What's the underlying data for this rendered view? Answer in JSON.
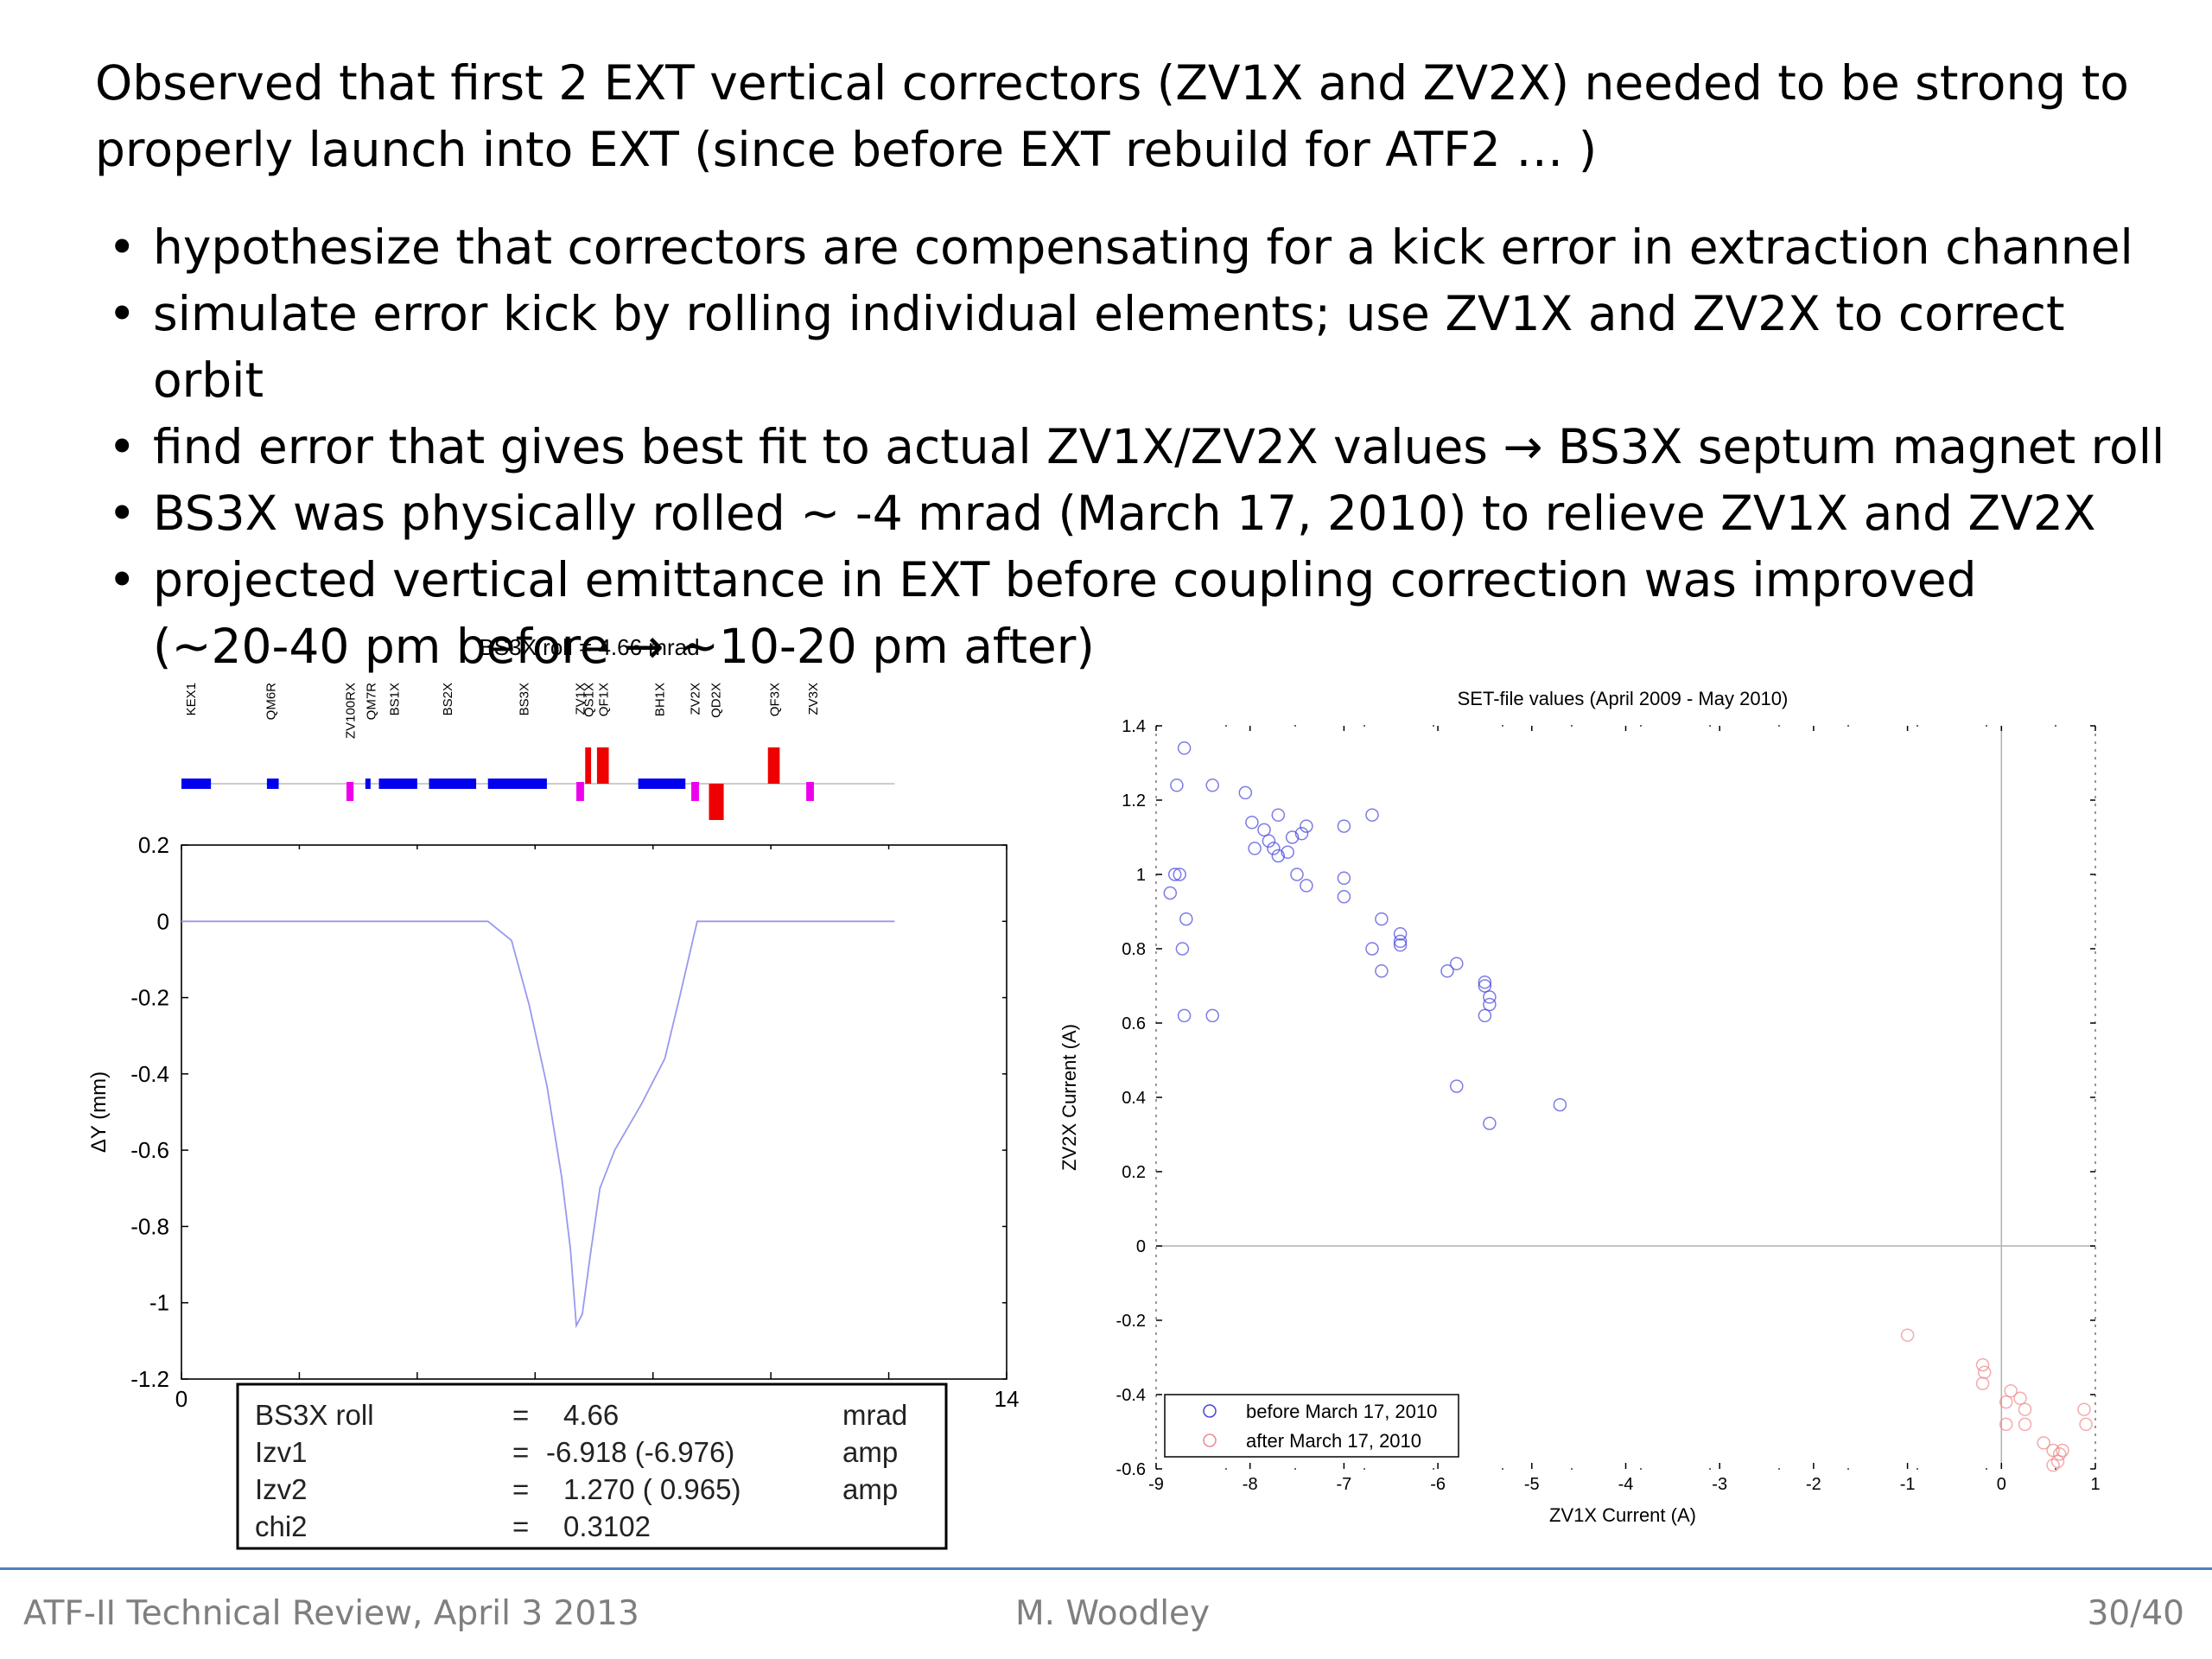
{
  "slide": {
    "intro_lines": [
      "Observed that first 2 EXT vertical correctors (ZV1X and ZV2X) needed to be strong to",
      "properly launch into EXT (since before EXT rebuild for ATF2 … )"
    ],
    "bullets": [
      "hypothesize that correctors are compensating for a kick error in extraction channel",
      "simulate error kick by rolling individual elements; use ZV1X and ZV2X to correct orbit",
      "find error that gives best fit to actual ZV1X/ZV2X values → BS3X septum magnet roll",
      "BS3X was physically rolled ~ -4 mrad (March 17, 2010) to relieve ZV1X and ZV2X",
      "projected vertical emittance in EXT before coupling correction was improved"
    ],
    "bullet_continuation": "(~20-40 pm before → ~10-20 pm after)",
    "bullet_symbol": "•"
  },
  "footer": {
    "left": "ATF-II Technical Review, April 3 2013",
    "center": "M. Woodley",
    "right": "30/40",
    "line_color": "#4f81bd"
  },
  "chart_data": [
    {
      "type": "line",
      "title": "BS3X roll = 4.66 mrad",
      "xlabel": "",
      "ylabel": "ΔY (mm)",
      "xlim": [
        0,
        14
      ],
      "ylim": [
        -1.2,
        0.2
      ],
      "xticks": [
        "0",
        "2",
        "4",
        "6",
        "8",
        "10",
        "12",
        "14"
      ],
      "yticks": [
        "0.2",
        "0",
        "-0.2",
        "-0.4",
        "-0.6",
        "-0.8",
        "-1",
        "-1.2"
      ],
      "grid": false,
      "series": [
        {
          "color": "#9999ee",
          "x": [
            0,
            5.2,
            5.6,
            5.9,
            6.2,
            6.45,
            6.6,
            6.7,
            6.8,
            6.95,
            7.1,
            7.35,
            7.8,
            8.2,
            8.45,
            8.75,
            9.0,
            12.1
          ],
          "y": [
            0,
            0,
            -0.05,
            -0.22,
            -0.43,
            -0.67,
            -0.86,
            -1.06,
            -1.03,
            -0.86,
            -0.7,
            -0.6,
            -0.48,
            -0.36,
            -0.2,
            0,
            0,
            0
          ]
        }
      ],
      "beamline": {
        "element_labels": [
          {
            "name": "KEX1",
            "s": 0.15
          },
          {
            "name": "QM6R",
            "s": 1.5
          },
          {
            "name": "ZV100RX",
            "s": 2.85
          },
          {
            "name": "QM7R",
            "s": 3.2
          },
          {
            "name": "BS1X",
            "s": 3.6
          },
          {
            "name": "BS2X",
            "s": 4.5
          },
          {
            "name": "BS3X",
            "s": 5.8
          },
          {
            "name": "ZV1X",
            "s": 6.75
          },
          {
            "name": "QS1X",
            "s": 6.9
          },
          {
            "name": "QF1X",
            "s": 7.15
          },
          {
            "name": "BH1X",
            "s": 8.1
          },
          {
            "name": "ZV2X",
            "s": 8.7
          },
          {
            "name": "QD2X",
            "s": 9.05
          },
          {
            "name": "QF3X",
            "s": 10.05
          },
          {
            "name": "ZV3X",
            "s": 10.7
          }
        ],
        "elements": [
          {
            "kind": "bend",
            "color": "#0000ee",
            "s0": 0.0,
            "s1": 0.5
          },
          {
            "kind": "bend",
            "color": "#0000ee",
            "s0": 1.45,
            "s1": 1.65
          },
          {
            "kind": "corrector",
            "color": "#ee00ee",
            "s0": 2.8,
            "s1": 2.92
          },
          {
            "kind": "bend",
            "color": "#0000ee",
            "s0": 3.12,
            "s1": 3.2
          },
          {
            "kind": "bend",
            "color": "#0000ee",
            "s0": 3.35,
            "s1": 4.0
          },
          {
            "kind": "bend",
            "color": "#0000ee",
            "s0": 4.2,
            "s1": 5.0
          },
          {
            "kind": "bend",
            "color": "#0000ee",
            "s0": 5.2,
            "s1": 6.2
          },
          {
            "kind": "corrector",
            "color": "#ee00ee",
            "s0": 6.7,
            "s1": 6.83
          },
          {
            "kind": "quad_f",
            "color": "#ee0000",
            "s0": 6.85,
            "s1": 6.95
          },
          {
            "kind": "quad_f",
            "color": "#ee0000",
            "s0": 7.05,
            "s1": 7.25
          },
          {
            "kind": "bend",
            "color": "#0000ee",
            "s0": 7.75,
            "s1": 8.55
          },
          {
            "kind": "corrector",
            "color": "#ee00ee",
            "s0": 8.65,
            "s1": 8.78
          },
          {
            "kind": "quad_d",
            "color": "#ee0000",
            "s0": 8.95,
            "s1": 9.2
          },
          {
            "kind": "quad_f",
            "color": "#ee0000",
            "s0": 9.95,
            "s1": 10.15
          },
          {
            "kind": "corrector",
            "color": "#ee00ee",
            "s0": 10.6,
            "s1": 10.73
          }
        ]
      },
      "results_box": [
        {
          "name": "BS3X roll",
          "eq": "=",
          "value": "4.66",
          "unit": "mrad"
        },
        {
          "name": "Izv1",
          "eq": "=",
          "value": "-6.918 (-6.976)",
          "unit": "amp"
        },
        {
          "name": "Izv2",
          "eq": "=",
          "value": "1.270 ( 0.965)",
          "unit": "amp"
        },
        {
          "name": "chi2",
          "eq": "=",
          "value": "0.3102",
          "unit": ""
        }
      ]
    },
    {
      "type": "scatter",
      "title": "SET-file values (April 2009 - May 2010)",
      "xlabel": "ZV1X Current (A)",
      "ylabel": "ZV2X Current (A)",
      "xlim": [
        -9,
        1
      ],
      "ylim": [
        -0.6,
        1.4
      ],
      "xticks": [
        "-9",
        "-8",
        "-7",
        "-6",
        "-5",
        "-4",
        "-3",
        "-2",
        "-1",
        "0",
        "1"
      ],
      "yticks": [
        "1.4",
        "1.2",
        "1",
        "0.8",
        "0.6",
        "0.4",
        "0.2",
        "0",
        "-0.2",
        "-0.4",
        "-0.6"
      ],
      "grid": false,
      "legend_position": "bottom-left",
      "series": [
        {
          "name": "before March 17, 2010",
          "color": "#4444dd",
          "points": [
            [
              -8.7,
              1.34
            ],
            [
              -8.78,
              1.24
            ],
            [
              -8.8,
              1.0
            ],
            [
              -8.85,
              0.95
            ],
            [
              -8.75,
              1.0
            ],
            [
              -8.68,
              0.88
            ],
            [
              -8.72,
              0.8
            ],
            [
              -8.7,
              0.62
            ],
            [
              -8.4,
              1.24
            ],
            [
              -8.4,
              0.62
            ],
            [
              -8.05,
              1.22
            ],
            [
              -7.98,
              1.14
            ],
            [
              -7.85,
              1.12
            ],
            [
              -7.95,
              1.07
            ],
            [
              -7.8,
              1.09
            ],
            [
              -7.75,
              1.07
            ],
            [
              -7.7,
              1.16
            ],
            [
              -7.7,
              1.05
            ],
            [
              -7.6,
              1.06
            ],
            [
              -7.55,
              1.1
            ],
            [
              -7.4,
              1.13
            ],
            [
              -7.45,
              1.11
            ],
            [
              -7.5,
              1.0
            ],
            [
              -7.4,
              0.97
            ],
            [
              -7.0,
              1.13
            ],
            [
              -7.0,
              0.99
            ],
            [
              -7.0,
              0.94
            ],
            [
              -6.7,
              1.16
            ],
            [
              -6.6,
              0.88
            ],
            [
              -6.7,
              0.8
            ],
            [
              -6.6,
              0.74
            ],
            [
              -6.4,
              0.84
            ],
            [
              -6.4,
              0.82
            ],
            [
              -6.4,
              0.81
            ],
            [
              -5.9,
              0.74
            ],
            [
              -5.8,
              0.76
            ],
            [
              -5.5,
              0.71
            ],
            [
              -5.5,
              0.7
            ],
            [
              -5.45,
              0.67
            ],
            [
              -5.45,
              0.65
            ],
            [
              -5.5,
              0.62
            ],
            [
              -5.8,
              0.43
            ],
            [
              -5.45,
              0.33
            ],
            [
              -4.7,
              0.38
            ]
          ]
        },
        {
          "name": "after March 17, 2010",
          "color": "#ee8888",
          "points": [
            [
              -1.0,
              -0.24
            ],
            [
              -0.2,
              -0.32
            ],
            [
              -0.18,
              -0.34
            ],
            [
              -0.2,
              -0.37
            ],
            [
              0.1,
              -0.39
            ],
            [
              0.05,
              -0.42
            ],
            [
              0.2,
              -0.41
            ],
            [
              0.25,
              -0.44
            ],
            [
              0.05,
              -0.48
            ],
            [
              0.25,
              -0.48
            ],
            [
              0.45,
              -0.53
            ],
            [
              0.55,
              -0.55
            ],
            [
              0.62,
              -0.56
            ],
            [
              0.65,
              -0.55
            ],
            [
              0.6,
              -0.58
            ],
            [
              0.88,
              -0.44
            ],
            [
              0.9,
              -0.48
            ],
            [
              0.55,
              -0.59
            ]
          ]
        }
      ]
    }
  ]
}
